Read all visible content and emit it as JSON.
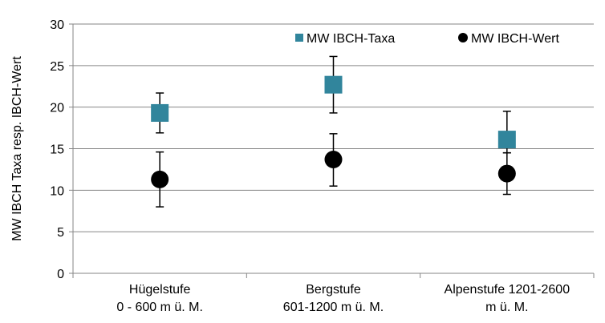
{
  "chart_data": {
    "type": "scatter",
    "title": "",
    "ylabel": "MW IBCH Taxa resp. IBCH-Wert",
    "ylim": [
      0,
      30
    ],
    "yticks": [
      0,
      5,
      10,
      15,
      20,
      25,
      30
    ],
    "grid": true,
    "legend_position": "top-right",
    "categories": [
      [
        "Hügelstufe",
        "0 - 600 m ü. M."
      ],
      [
        "Bergstufe",
        "601-1200 m ü. M."
      ],
      [
        "Alpenstufe 1201-2600",
        "m ü. M."
      ]
    ],
    "series": [
      {
        "name": "MW IBCH-Taxa",
        "marker": "square",
        "color": "#31859C",
        "values": [
          19.3,
          22.7,
          16.1
        ],
        "err_low": [
          16.9,
          19.3,
          14.5
        ],
        "err_high": [
          21.7,
          26.1,
          19.5
        ]
      },
      {
        "name": "MW IBCH-Wert",
        "marker": "circle",
        "color": "#000000",
        "values": [
          11.3,
          13.7,
          12.0
        ],
        "err_low": [
          8.0,
          10.5,
          9.5
        ],
        "err_high": [
          14.6,
          16.8,
          14.5
        ]
      }
    ]
  }
}
